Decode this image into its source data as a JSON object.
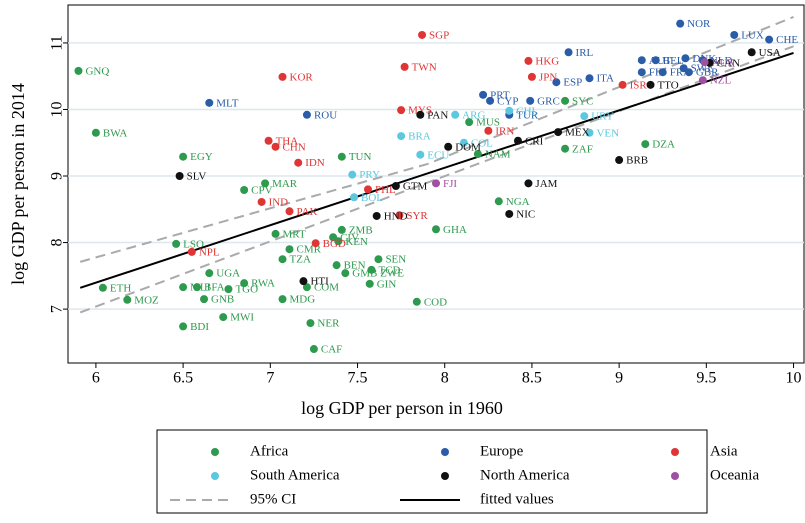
{
  "chart_data": {
    "type": "scatter",
    "xlabel": "log GDP per person in 1960",
    "ylabel": "log GDP per person in 2014",
    "xlim": [
      5.84,
      10.06
    ],
    "ylim": [
      6.19,
      11.57
    ],
    "xticks": [
      6,
      6.5,
      7,
      7.5,
      8,
      8.5,
      9,
      9.5,
      10
    ],
    "yticks": [
      7,
      8,
      9,
      10,
      11
    ],
    "grid": true,
    "series": [
      {
        "name": "Africa",
        "color": "#2e9a4e",
        "labels": [
          "GNQ",
          "BWA",
          "EGY",
          "CPV",
          "MAR",
          "TUN",
          "MRT",
          "CMR",
          "TZA",
          "LSO",
          "ZMB",
          "CIV",
          "BEN",
          "GMB ZWE",
          "SEN",
          "TCD",
          "GIN",
          "GHA",
          "NGA",
          "ZAF",
          "DZA",
          "SYC",
          "MUS",
          "NAM",
          "UGA",
          "ETH",
          "MOZ",
          "MLI",
          "BFA",
          "RWA",
          "TGO",
          "GNB",
          "MDG",
          "MWI",
          "BDI",
          "NER",
          "CAF",
          "COM",
          "COD",
          "KEN"
        ],
        "x": [
          5.9,
          6.0,
          6.5,
          6.85,
          6.97,
          7.41,
          7.03,
          7.11,
          7.07,
          6.46,
          7.41,
          7.36,
          7.38,
          7.43,
          7.62,
          7.58,
          7.57,
          7.95,
          8.31,
          8.69,
          9.15,
          8.69,
          8.14,
          8.19,
          6.65,
          6.04,
          6.18,
          6.5,
          6.58,
          6.85,
          6.76,
          6.62,
          7.07,
          6.73,
          6.5,
          7.23,
          7.25,
          7.21,
          7.84,
          7.39
        ],
        "values": [
          10.58,
          9.65,
          9.29,
          8.79,
          8.89,
          9.29,
          8.13,
          7.9,
          7.75,
          7.98,
          8.19,
          8.08,
          7.66,
          7.54,
          7.75,
          7.59,
          7.38,
          8.2,
          8.62,
          9.41,
          9.48,
          10.13,
          9.81,
          9.33,
          7.54,
          7.32,
          7.14,
          7.33,
          7.33,
          7.39,
          7.3,
          7.15,
          7.15,
          6.88,
          6.74,
          6.79,
          6.4,
          7.33,
          7.11,
          8.02
        ]
      },
      {
        "name": "Europe",
        "color": "#2a5ca8",
        "labels": [
          "NOR",
          "LUX",
          "CHE",
          "IRL",
          "MLT",
          "ROU",
          "PRT",
          "CYP",
          "GRC",
          "ESP",
          "ITA",
          "TUR",
          "AUT",
          "BEL",
          "DNK",
          "SWE",
          "GBR",
          "FRA",
          "NLD",
          "FIN"
        ],
        "x": [
          9.35,
          9.66,
          9.86,
          8.71,
          6.65,
          7.21,
          8.22,
          8.26,
          8.49,
          8.64,
          8.83,
          8.37,
          9.13,
          9.21,
          9.38,
          9.37,
          9.4,
          9.25,
          9.48,
          9.13
        ],
        "values": [
          11.29,
          11.12,
          11.05,
          10.86,
          10.1,
          9.92,
          10.22,
          10.13,
          10.13,
          10.41,
          10.47,
          9.92,
          10.74,
          10.74,
          10.77,
          10.62,
          10.56,
          10.56,
          10.74,
          10.56
        ]
      },
      {
        "name": "Asia",
        "color": "#e03535",
        "labels": [
          "SGP",
          "TWN",
          "KOR",
          "HKG",
          "JPN",
          "ISR",
          "MYS",
          "THA",
          "CHN",
          "IDN",
          "IND",
          "PHL",
          "PAK",
          "BGD",
          "NPL",
          "IRN",
          "SYR"
        ],
        "x": [
          7.87,
          7.77,
          7.07,
          8.48,
          8.5,
          9.02,
          7.75,
          6.99,
          7.03,
          7.16,
          6.95,
          7.56,
          7.11,
          7.26,
          6.55,
          8.25,
          7.74
        ],
        "values": [
          11.12,
          10.64,
          10.49,
          10.73,
          10.49,
          10.37,
          9.99,
          9.53,
          9.44,
          9.2,
          8.61,
          8.8,
          8.47,
          7.99,
          7.86,
          9.68,
          8.41
        ]
      },
      {
        "name": "South America",
        "color": "#5bc8e0",
        "labels": [
          "ARG",
          "BRA",
          "CHL",
          "URY",
          "VEN",
          "PRY",
          "BOL",
          "ECU",
          "COL"
        ],
        "x": [
          8.06,
          7.75,
          8.37,
          8.8,
          8.83,
          7.47,
          7.48,
          7.86,
          8.11
        ],
        "values": [
          9.92,
          9.6,
          9.98,
          9.9,
          9.65,
          9.02,
          8.68,
          9.32,
          9.5
        ]
      },
      {
        "name": "North America",
        "color": "#111111",
        "labels": [
          "USA",
          "CAN",
          "TTO",
          "PAN",
          "MEX",
          "CRI",
          "DOM",
          "SLV",
          "GTM",
          "HND",
          "NIC",
          "JAM",
          "BRB",
          "HTI"
        ],
        "x": [
          9.76,
          9.52,
          9.18,
          7.86,
          8.65,
          8.42,
          8.02,
          6.48,
          7.72,
          7.61,
          8.37,
          8.48,
          9.0,
          7.19
        ],
        "values": [
          10.86,
          10.7,
          10.37,
          9.92,
          9.66,
          9.53,
          9.44,
          9.0,
          8.85,
          8.4,
          8.43,
          8.89,
          9.24,
          7.42
        ]
      },
      {
        "name": "Oceania",
        "color": "#a050a0",
        "labels": [
          "FJI",
          "NZL",
          "AUS"
        ],
        "x": [
          7.95,
          9.48,
          9.49
        ],
        "values": [
          8.89,
          10.44,
          10.71
        ]
      },
      {
        "name": "95% CI",
        "type": "line",
        "color": "#aaaaaa",
        "dashed": true,
        "x": [
          5.91,
          7.9,
          10.0
        ],
        "values": [
          7.71,
          9.18,
          11.39
        ],
        "lower": [
          6.95,
          8.9,
          10.95
        ]
      },
      {
        "name": "fitted values",
        "type": "line",
        "color": "#000000",
        "x": [
          5.91,
          10.0
        ],
        "values": [
          7.32,
          10.85
        ]
      }
    ]
  }
}
